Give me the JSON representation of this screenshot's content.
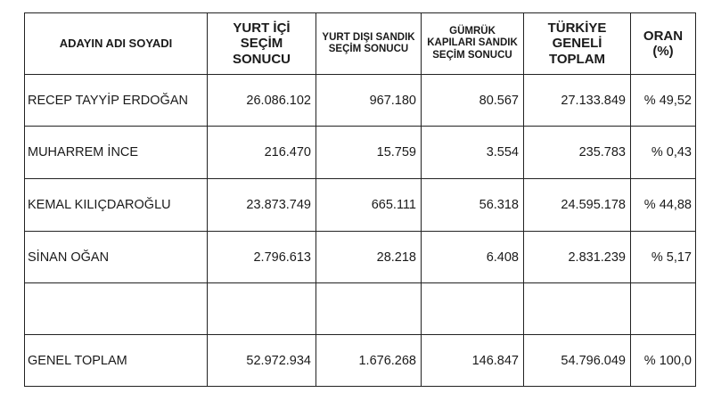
{
  "headers": [
    "ADAYIN ADI SOYADI",
    "YURT İÇİ SEÇİM SONUCU",
    "YURT DIŞI SANDIK SEÇİM SONUCU",
    "GÜMRÜK KAPILARI SANDIK SEÇİM SONUCU",
    "TÜRKİYE GENELİ TOPLAM",
    "ORAN (%)"
  ],
  "rows": [
    [
      "RECEP TAYYİP ERDOĞAN",
      "26.086.102",
      "967.180",
      "80.567",
      "27.133.849",
      "% 49,52"
    ],
    [
      "MUHARREM İNCE",
      "216.470",
      "15.759",
      "3.554",
      "235.783",
      "% 0,43"
    ],
    [
      "KEMAL KILIÇDAROĞLU",
      "23.873.749",
      "665.111",
      "56.318",
      "24.595.178",
      "% 44,88"
    ],
    [
      "SİNAN OĞAN",
      "2.796.613",
      "28.218",
      "6.408",
      "2.831.239",
      "% 5,17"
    ],
    [
      "",
      "",
      "",
      "",
      "",
      ""
    ],
    [
      "GENEL TOPLAM",
      "52.972.934",
      "1.676.268",
      "146.847",
      "54.796.049",
      "% 100,0"
    ]
  ]
}
